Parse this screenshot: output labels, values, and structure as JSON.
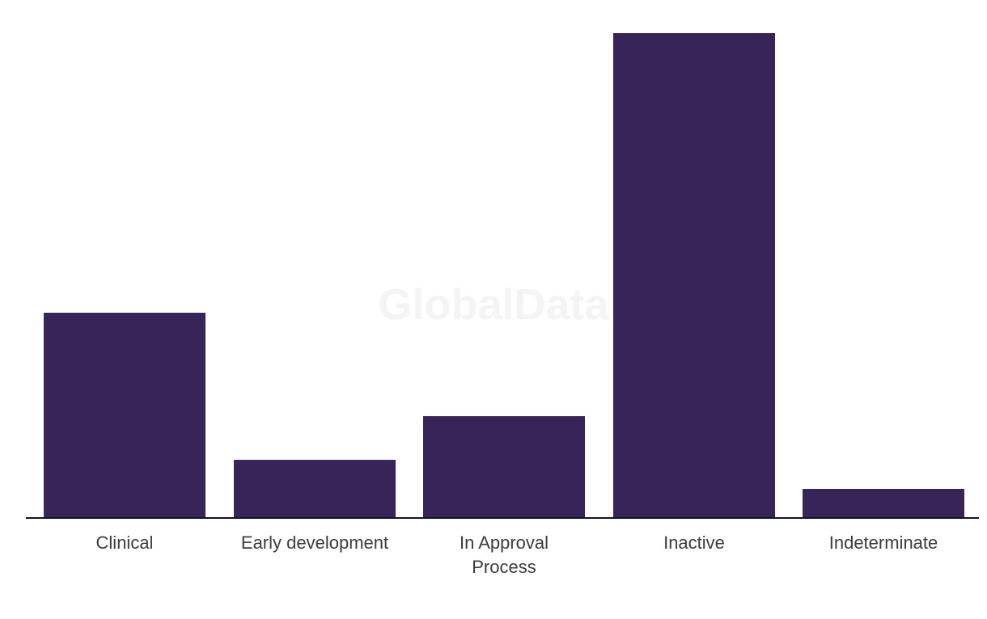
{
  "watermark": {
    "text": "GlobalData",
    "color": "#F4F4F4"
  },
  "chart_data": {
    "type": "bar",
    "title": "",
    "xlabel": "",
    "ylabel": "",
    "categories": [
      "Clinical",
      "Early development",
      "In Approval Process",
      "Inactive",
      "Indeterminate"
    ],
    "values": [
      42.3,
      12,
      21,
      100,
      6
    ],
    "ylim": [
      0,
      100
    ],
    "grid": false,
    "legend": false,
    "axis_shown": "x-only",
    "bar_color": "#37255A",
    "axis_color": "#13132B",
    "label_color": "#3C3C3C"
  }
}
